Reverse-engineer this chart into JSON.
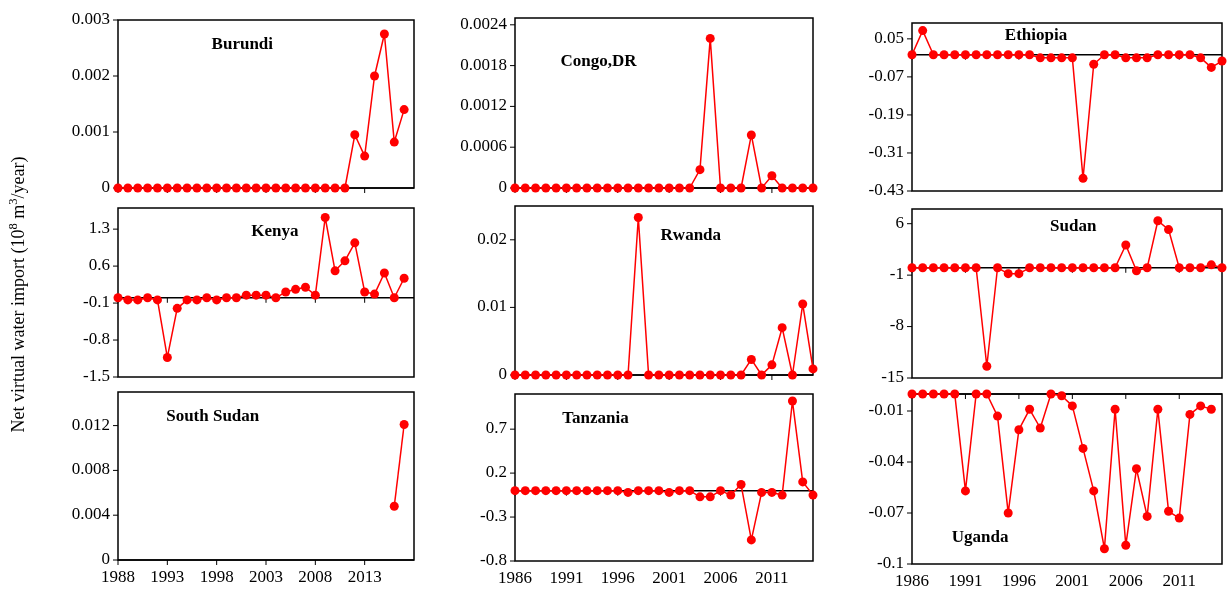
{
  "chart_data": [
    {
      "type": "line",
      "title": "Burundi",
      "x": [
        1988,
        1989,
        1990,
        1991,
        1992,
        1993,
        1994,
        1995,
        1996,
        1997,
        1998,
        1999,
        2000,
        2001,
        2002,
        2003,
        2004,
        2005,
        2006,
        2007,
        2008,
        2009,
        2010,
        2011,
        2012,
        2013,
        2014,
        2015,
        2016,
        2017
      ],
      "series": [
        {
          "color": "#ff0000",
          "values": [
            0,
            0,
            0,
            0,
            0,
            0,
            0,
            0,
            0,
            0,
            0,
            0,
            0,
            0,
            0,
            0,
            0,
            0,
            0,
            0,
            0,
            0,
            0,
            0,
            0.00095,
            0.00057,
            0.002,
            0.00275,
            0.00082,
            0.0014
          ]
        }
      ],
      "xlim": [
        1988,
        2018
      ],
      "xticks": [
        1988,
        1993,
        1998,
        2003,
        2008,
        2013
      ],
      "ylim": [
        0,
        0.003
      ],
      "yticks": [
        0,
        0.001,
        0.002,
        0.003
      ],
      "marker": "circle",
      "line_style": "solid",
      "tick_labels": "y"
    },
    {
      "type": "line",
      "title": "Congo,DR",
      "x": [
        1986,
        1987,
        1988,
        1989,
        1990,
        1991,
        1992,
        1993,
        1994,
        1995,
        1996,
        1997,
        1998,
        1999,
        2000,
        2001,
        2002,
        2003,
        2004,
        2005,
        2006,
        2007,
        2008,
        2009,
        2010,
        2011,
        2012,
        2013,
        2014,
        2015
      ],
      "series": [
        {
          "color": "#ff0000",
          "values": [
            0,
            0,
            0,
            0,
            0,
            0,
            0,
            0,
            0,
            0,
            0,
            0,
            0,
            0,
            0,
            0,
            0,
            0,
            0.00027,
            0.0022,
            0,
            0,
            0,
            0.00078,
            0,
            0.00018,
            0,
            0,
            0,
            0
          ]
        }
      ],
      "xlim": [
        1986,
        2015
      ],
      "xticks": [
        1986,
        1991,
        1996,
        2001,
        2006,
        2011
      ],
      "ylim": [
        0,
        0.0025
      ],
      "yticks": [
        0,
        0.0006,
        0.0012,
        0.0018,
        0.0024
      ],
      "marker": "circle",
      "line_style": "solid",
      "tick_labels": "y"
    },
    {
      "type": "line",
      "title": "Ethiopia",
      "x": [
        1986,
        1987,
        1988,
        1989,
        1990,
        1991,
        1992,
        1993,
        1994,
        1995,
        1996,
        1997,
        1998,
        1999,
        2000,
        2001,
        2002,
        2003,
        2004,
        2005,
        2006,
        2007,
        2008,
        2009,
        2010,
        2011,
        2012,
        2013,
        2014,
        2015
      ],
      "series": [
        {
          "color": "#ff0000",
          "values": [
            0,
            0.076,
            0,
            0,
            0,
            0,
            0,
            0,
            0,
            0,
            0,
            0,
            -0.01,
            -0.01,
            -0.01,
            -0.01,
            -0.39,
            -0.03,
            0,
            0,
            -0.01,
            -0.01,
            -0.01,
            0,
            0,
            0,
            0,
            -0.01,
            -0.04,
            -0.02
          ]
        }
      ],
      "xlim": [
        1986,
        2015
      ],
      "xticks": [
        1986,
        1991,
        1996,
        2001,
        2006,
        2011
      ],
      "ylim": [
        -0.43,
        0.1
      ],
      "yticks": [
        -0.43,
        -0.31,
        -0.19,
        -0.07,
        0.05
      ],
      "marker": "circle",
      "line_style": "solid",
      "tick_labels": "y"
    },
    {
      "type": "line",
      "title": "Kenya",
      "ylabel": "Net virtual water import (10$^{8}$ m$^{3}$/year)",
      "x": [
        1988,
        1989,
        1990,
        1991,
        1992,
        1993,
        1994,
        1995,
        1996,
        1997,
        1998,
        1999,
        2000,
        2001,
        2002,
        2003,
        2004,
        2005,
        2006,
        2007,
        2008,
        2009,
        2010,
        2011,
        2012,
        2013,
        2014,
        2015,
        2016,
        2017
      ],
      "series": [
        {
          "color": "#ff0000",
          "values": [
            0,
            -0.04,
            -0.04,
            0,
            -0.04,
            -1.13,
            -0.2,
            -0.04,
            -0.04,
            0,
            -0.04,
            0,
            0,
            0.05,
            0.05,
            0.05,
            0,
            0.11,
            0.16,
            0.2,
            0.05,
            1.52,
            0.51,
            0.7,
            1.04,
            0.11,
            0.07,
            0.47,
            0,
            0.37
          ]
        }
      ],
      "xlim": [
        1988,
        2018
      ],
      "xticks": [
        1988,
        1993,
        1998,
        2003,
        2008,
        2013
      ],
      "ylim": [
        -1.5,
        1.7
      ],
      "yticks": [
        -1.5,
        -0.8,
        -0.1,
        0.6,
        1.3
      ],
      "marker": "circle",
      "line_style": "solid",
      "tick_labels": "y"
    },
    {
      "type": "line",
      "title": "Rwanda",
      "x": [
        1986,
        1987,
        1988,
        1989,
        1990,
        1991,
        1992,
        1993,
        1994,
        1995,
        1996,
        1997,
        1998,
        1999,
        2000,
        2001,
        2002,
        2003,
        2004,
        2005,
        2006,
        2007,
        2008,
        2009,
        2010,
        2011,
        2012,
        2013,
        2014,
        2015
      ],
      "series": [
        {
          "color": "#ff0000",
          "values": [
            0,
            0,
            0,
            0,
            0,
            0,
            0,
            0,
            0,
            0,
            0,
            0,
            0.0233,
            0,
            0,
            0,
            0,
            0,
            0,
            0,
            0,
            0,
            0,
            0.0023,
            0,
            0.0015,
            0.007,
            0,
            0.0105,
            0.0009
          ]
        }
      ],
      "xlim": [
        1986,
        2015
      ],
      "xticks": [
        1986,
        1991,
        1996,
        2001,
        2006,
        2011
      ],
      "ylim": [
        0,
        0.025
      ],
      "yticks": [
        0,
        0.01,
        0.02
      ],
      "marker": "circle",
      "line_style": "solid",
      "tick_labels": "y"
    },
    {
      "type": "line",
      "title": "Sudan",
      "x": [
        1986,
        1987,
        1988,
        1989,
        1990,
        1991,
        1992,
        1993,
        1994,
        1995,
        1996,
        1997,
        1998,
        1999,
        2000,
        2001,
        2002,
        2003,
        2004,
        2005,
        2006,
        2007,
        2008,
        2009,
        2010,
        2011,
        2012,
        2013,
        2014,
        2015
      ],
      "series": [
        {
          "color": "#ff0000",
          "values": [
            0,
            0,
            0,
            0,
            0,
            0,
            0,
            -13.4,
            0,
            -0.8,
            -0.8,
            0,
            0,
            0,
            0,
            0,
            0,
            0,
            0,
            0,
            3.1,
            -0.4,
            0,
            6.4,
            5.2,
            0,
            0,
            0,
            0.4,
            0
          ]
        }
      ],
      "xlim": [
        1986,
        2015
      ],
      "xticks": [
        1986,
        1991,
        1996,
        2001,
        2006,
        2011
      ],
      "ylim": [
        -15,
        8
      ],
      "yticks": [
        -15,
        -8,
        -1,
        6
      ],
      "marker": "circle",
      "line_style": "solid",
      "tick_labels": "y"
    },
    {
      "type": "line",
      "title": "South Sudan",
      "series": [
        {
          "color": "#ff0000",
          "x": [
            2016,
            2017
          ],
          "values": [
            0.0048,
            0.0121
          ]
        }
      ],
      "xlim": [
        1988,
        2018
      ],
      "xticks": [
        1988,
        1993,
        1998,
        2003,
        2008,
        2013
      ],
      "ylim": [
        0,
        0.015
      ],
      "yticks": [
        0,
        0.004,
        0.008,
        0.012
      ],
      "marker": "circle",
      "line_style": "solid"
    },
    {
      "type": "line",
      "title": "Tanzania",
      "x": [
        1986,
        1987,
        1988,
        1989,
        1990,
        1991,
        1992,
        1993,
        1994,
        1995,
        1996,
        1997,
        1998,
        1999,
        2000,
        2001,
        2002,
        2003,
        2004,
        2005,
        2006,
        2007,
        2008,
        2009,
        2010,
        2011,
        2012,
        2013,
        2014,
        2015
      ],
      "series": [
        {
          "color": "#ff0000",
          "values": [
            0,
            0,
            0,
            0,
            0,
            0,
            0,
            0,
            0,
            0,
            0,
            -0.02,
            0,
            0,
            0,
            -0.02,
            0,
            0,
            -0.07,
            -0.07,
            0,
            -0.05,
            0.07,
            -0.56,
            -0.02,
            -0.02,
            -0.05,
            1.02,
            0.1,
            -0.05
          ]
        }
      ],
      "xlim": [
        1986,
        2015
      ],
      "xticks": [
        1986,
        1991,
        1996,
        2001,
        2006,
        2011
      ],
      "ylim": [
        -0.8,
        1.1
      ],
      "yticks": [
        -0.8,
        -0.3,
        0.2,
        0.7
      ],
      "marker": "circle",
      "line_style": "solid"
    },
    {
      "type": "line",
      "title": "Uganda",
      "x": [
        1986,
        1987,
        1988,
        1989,
        1990,
        1991,
        1992,
        1993,
        1994,
        1995,
        1996,
        1997,
        1998,
        1999,
        2000,
        2001,
        2002,
        2003,
        2004,
        2005,
        2006,
        2007,
        2008,
        2009,
        2010,
        2011,
        2012,
        2013,
        2014
      ],
      "series": [
        {
          "color": "#ff0000",
          "values": [
            0,
            0,
            0,
            0,
            0,
            -0.057,
            0,
            0,
            -0.013,
            -0.07,
            -0.021,
            -0.009,
            -0.02,
            0,
            -0.001,
            -0.007,
            -0.032,
            -0.057,
            -0.091,
            -0.009,
            -0.089,
            -0.044,
            -0.072,
            -0.009,
            -0.069,
            -0.073,
            -0.012,
            -0.007,
            -0.009
          ]
        }
      ],
      "xlim": [
        1986,
        2015
      ],
      "xticks": [
        1986,
        1991,
        1996,
        2001,
        2006,
        2011
      ],
      "ylim": [
        -0.1,
        0
      ],
      "yticks": [
        -0.1,
        -0.07,
        -0.04,
        -0.01
      ],
      "marker": "circle",
      "line_style": "solid"
    }
  ]
}
